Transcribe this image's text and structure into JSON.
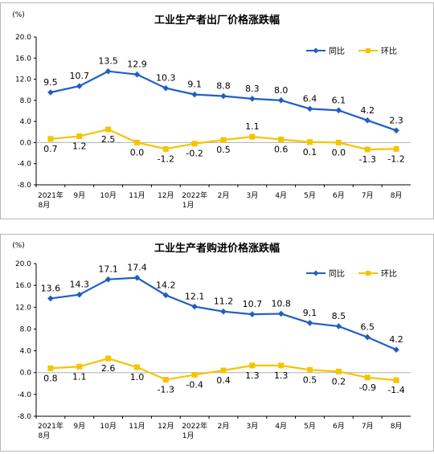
{
  "colors": {
    "yoy": "#1f5fc4",
    "mom": "#f5c400",
    "axis": "#000000",
    "grid": "#d9d9d9"
  },
  "chart_data": [
    {
      "type": "line",
      "title": "工业生产者出厂价格涨跌幅",
      "unit": "(%)",
      "categories": [
        "2021年",
        "9月",
        "10月",
        "11月",
        "12月",
        "2022年",
        "2月",
        "3月",
        "4月",
        "5月",
        "6月",
        "7月",
        "8月"
      ],
      "categories_sub": [
        "8月",
        "",
        "",
        "",
        "",
        "1月",
        "",
        "",
        "",
        "",
        "",
        "",
        ""
      ],
      "ylim": [
        -8.0,
        20.0
      ],
      "yticks": [
        "20.0",
        "16.0",
        "12.0",
        "8.0",
        "4.0",
        "0.0",
        "-4.0",
        "-8.0"
      ],
      "legend_position": "top-right",
      "series": [
        {
          "name": "同比",
          "values": [
            9.5,
            10.7,
            13.5,
            12.9,
            10.3,
            9.1,
            8.8,
            8.3,
            8.0,
            6.4,
            6.1,
            4.2,
            2.3
          ],
          "labels": [
            "9.5",
            "10.7",
            "13.5",
            "12.9",
            "10.3",
            "9.1",
            "8.8",
            "8.3",
            "8.0",
            "6.4",
            "6.1",
            "4.2",
            "2.3"
          ]
        },
        {
          "name": "环比",
          "values": [
            0.7,
            1.2,
            2.5,
            0.0,
            -1.2,
            -0.2,
            0.5,
            1.1,
            0.6,
            0.1,
            0.0,
            -1.3,
            -1.2
          ],
          "labels": [
            "0.7",
            "1.2",
            "2.5",
            "0.0",
            "-1.2",
            "-0.2",
            "0.5",
            "1.1",
            "0.6",
            "0.1",
            "0.0",
            "-1.3",
            "-1.2"
          ]
        }
      ]
    },
    {
      "type": "line",
      "title": "工业生产者购进价格涨跌幅",
      "unit": "(%)",
      "categories": [
        "2021年",
        "9月",
        "10月",
        "11月",
        "12月",
        "2022年",
        "2月",
        "3月",
        "4月",
        "5月",
        "6月",
        "7月",
        "8月"
      ],
      "categories_sub": [
        "8月",
        "",
        "",
        "",
        "",
        "1月",
        "",
        "",
        "",
        "",
        "",
        "",
        ""
      ],
      "ylim": [
        -8.0,
        20.0
      ],
      "yticks": [
        "20.0",
        "16.0",
        "12.0",
        "8.0",
        "4.0",
        "0.0",
        "-4.0",
        "-8.0"
      ],
      "legend_position": "top-right",
      "series": [
        {
          "name": "同比",
          "values": [
            13.6,
            14.3,
            17.1,
            17.4,
            14.2,
            12.1,
            11.2,
            10.7,
            10.8,
            9.1,
            8.5,
            6.5,
            4.2
          ],
          "labels": [
            "13.6",
            "14.3",
            "17.1",
            "17.4",
            "14.2",
            "12.1",
            "11.2",
            "10.7",
            "10.8",
            "9.1",
            "8.5",
            "6.5",
            "4.2"
          ]
        },
        {
          "name": "环比",
          "values": [
            0.8,
            1.1,
            2.6,
            1.0,
            -1.3,
            -0.4,
            0.4,
            1.3,
            1.3,
            0.5,
            0.2,
            -0.9,
            -1.4
          ],
          "labels": [
            "0.8",
            "1.1",
            "2.6",
            "1.0",
            "-1.3",
            "-0.4",
            "0.4",
            "1.3",
            "1.3",
            "0.5",
            "0.2",
            "-0.9",
            "-1.4"
          ]
        }
      ]
    }
  ]
}
